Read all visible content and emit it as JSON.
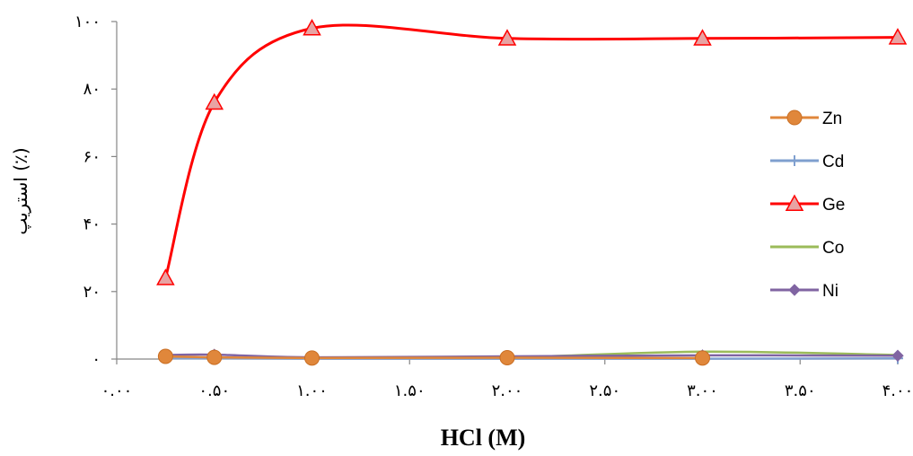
{
  "chart_data": {
    "type": "line",
    "xlabel": "HCl (M)",
    "ylabel": "استریپ (٪)",
    "xlim": [
      0,
      4
    ],
    "ylim": [
      0,
      100
    ],
    "x_ticks": [
      0,
      0.5,
      1,
      1.5,
      2,
      2.5,
      3,
      3.5,
      4
    ],
    "x_tick_labels": [
      "٠.٠٠",
      "٠.۵٠",
      "١.٠٠",
      "١.۵٠",
      "٢.٠٠",
      "٢.۵٠",
      "٣.٠٠",
      "٣.۵٠",
      "۴.٠٠"
    ],
    "y_ticks": [
      0,
      20,
      40,
      60,
      80,
      100
    ],
    "y_tick_labels": [
      "٠",
      "٢٠",
      "۴٠",
      "۶٠",
      "٨٠",
      "١٠٠"
    ],
    "grid": false,
    "legend_position": "right",
    "x": [
      0.25,
      0.5,
      1,
      2,
      3,
      4
    ],
    "series": [
      {
        "name": "Zn",
        "color": "#e0873b",
        "marker": "circle",
        "values": [
          0.8,
          0.5,
          0.3,
          0.4,
          0.3,
          null
        ]
      },
      {
        "name": "Cd",
        "color": "#7f9fcf",
        "marker": "plus",
        "values": [
          0.2,
          0.2,
          0.1,
          0.1,
          0.1,
          0.2
        ]
      },
      {
        "name": "Ge",
        "color": "#ff0000",
        "marker": "triangle",
        "values": [
          24,
          76,
          98,
          95,
          95,
          95.3
        ]
      },
      {
        "name": "Co",
        "color": "#9bbb59",
        "marker": "none",
        "values": [
          0.3,
          0.2,
          0.2,
          0.5,
          2.2,
          1.2
        ]
      },
      {
        "name": "Ni",
        "color": "#8064a2",
        "marker": "diamond",
        "values": [
          1.2,
          1.3,
          0.5,
          0.8,
          1.1,
          1.0
        ]
      }
    ]
  }
}
